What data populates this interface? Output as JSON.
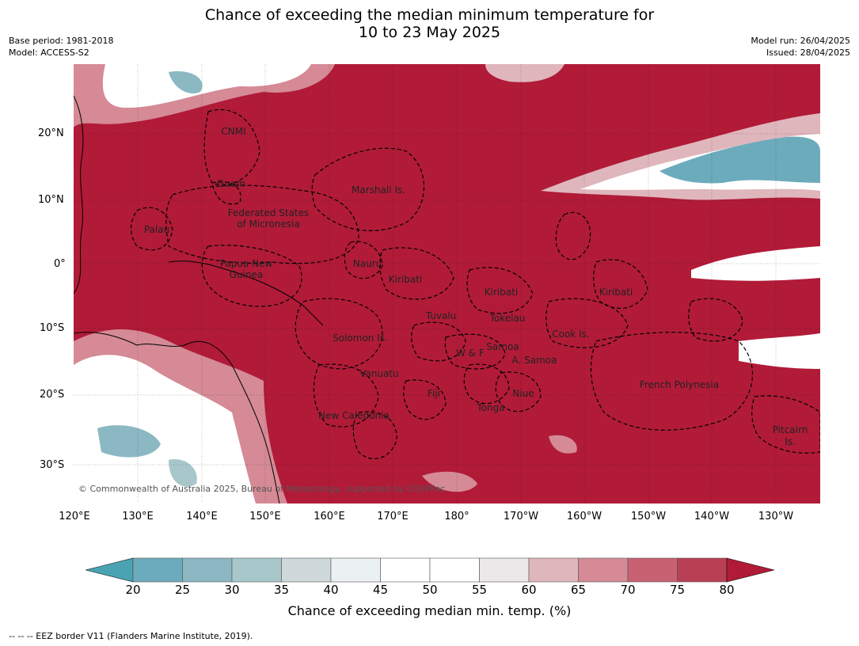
{
  "title_line1": "Chance of exceeding the median minimum temperature for",
  "title_line2": "10 to 23 May 2025",
  "base_period": "Base period: 1981-2018",
  "model": "Model: ACCESS-S2",
  "model_run": "Model run: 26/04/2025",
  "issued": "Issued: 28/04/2025",
  "lat_labels": [
    "20°N",
    "10°N",
    "0°",
    "10°S",
    "20°S",
    "30°S"
  ],
  "lon_labels": [
    "120°E",
    "130°E",
    "140°E",
    "150°E",
    "160°E",
    "170°E",
    "180°",
    "170°W",
    "160°W",
    "150°W",
    "140°W",
    "130°W"
  ],
  "regions": [
    "CNMI",
    "Guam",
    "Marshall Is.",
    "Federated States",
    "of Micronesia",
    "Palau",
    "Papua New",
    "Guinea",
    "Nauru",
    "Kiribati",
    "Kiribati",
    "Kiribati",
    "Tuvalu",
    "Tokelau",
    "Solomon Is.",
    "W & F",
    "Samoa",
    "A. Samoa",
    "Cook Is.",
    "Vanuatu",
    "Fiji",
    "Niue",
    "Tonga",
    "French Polynesia",
    "New Caledonia",
    "Pitcairn",
    "Is."
  ],
  "copyright": "© Commonwealth of Australia 2025, Bureau of Meteorology, supported by COSPPac",
  "colorbar": {
    "ticks": [
      "20",
      "25",
      "30",
      "35",
      "40",
      "45",
      "50",
      "55",
      "60",
      "65",
      "70",
      "75",
      "80"
    ],
    "colors": [
      "#4aa3b2",
      "#6cabbb",
      "#8bb8c3",
      "#a8c7cb",
      "#cfd8da",
      "#ebf1f2",
      "#ffffff",
      "#ffffff",
      "#ebe8e9",
      "#dfb6bc",
      "#d58a96",
      "#c86273",
      "#b93f55",
      "#b11b38"
    ],
    "title": "Chance of exceeding median min. temp. (%)"
  },
  "footnote": "--  --  -- EEZ border V11 (Flanders Marine Institute, 2019)."
}
